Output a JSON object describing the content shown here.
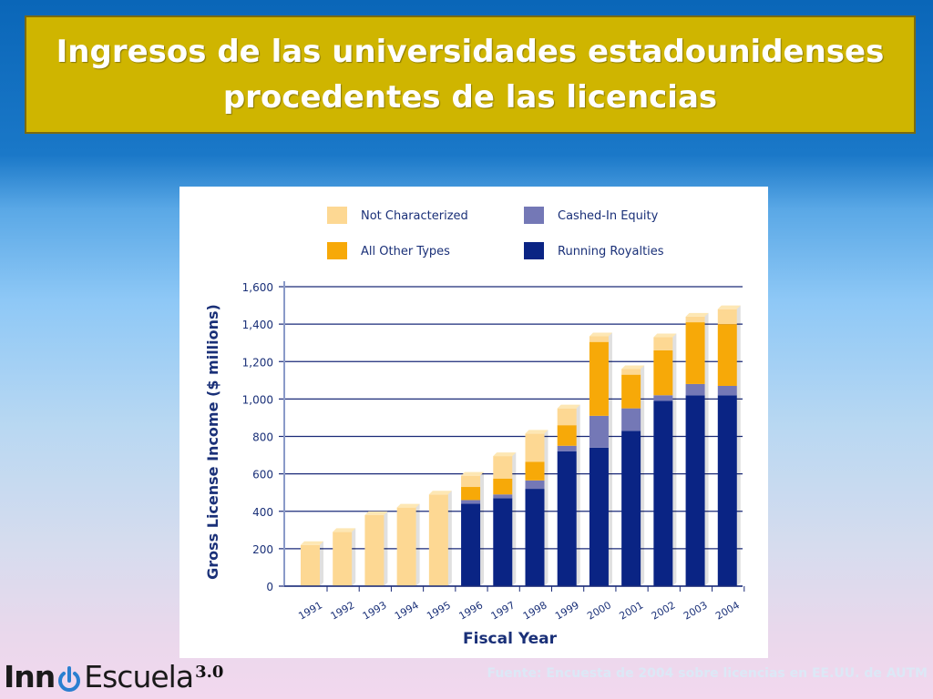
{
  "slide": {
    "title_line1": "Ingresos de las universidades estadounidenses",
    "title_line2": "procedentes de las licencias",
    "source": "Fuente: Encuesta de 2004 sobre licencias en EE.UU. de AUTM",
    "logo": {
      "inn": "Inn",
      "escuela": "Escuela",
      "version": "3.0"
    }
  },
  "colors": {
    "title_box": "#cfb500",
    "not_characterized": "#fdd893",
    "all_other_types": "#f7a908",
    "cashed_in_equity": "#7478b6",
    "running_royalties": "#0a2484",
    "axis_text": "#1a3078"
  },
  "chart_data": {
    "type": "bar",
    "stacked": true,
    "xlabel": "Fiscal Year",
    "ylabel": "Gross License Income ($ millions)",
    "ylim": [
      0,
      1600
    ],
    "yticks": [
      "0",
      "200",
      "400",
      "600",
      "800",
      "1,000",
      "1,200",
      "1,400",
      "1,600"
    ],
    "ytick_values": [
      0,
      200,
      400,
      600,
      800,
      1000,
      1200,
      1400,
      1600
    ],
    "grid": true,
    "legend_position": "top",
    "categories": [
      "1991",
      "1992",
      "1993",
      "1994",
      "1995",
      "1996",
      "1997",
      "1998",
      "1999",
      "2000",
      "2001",
      "2002",
      "2003",
      "2004"
    ],
    "series": [
      {
        "name": "Running Royalties",
        "color": "#0a2484",
        "values": [
          0,
          0,
          0,
          0,
          0,
          440,
          470,
          520,
          720,
          740,
          830,
          990,
          1020,
          1020
        ]
      },
      {
        "name": "Cashed-In Equity",
        "color": "#7478b6",
        "values": [
          0,
          0,
          0,
          0,
          0,
          20,
          20,
          45,
          30,
          170,
          120,
          30,
          60,
          50
        ]
      },
      {
        "name": "All Other Types",
        "color": "#f7a908",
        "values": [
          0,
          0,
          0,
          0,
          0,
          70,
          85,
          100,
          110,
          395,
          180,
          240,
          330,
          330
        ]
      },
      {
        "name": "Not Characterized",
        "color": "#fdd893",
        "values": [
          220,
          290,
          380,
          420,
          490,
          60,
          120,
          150,
          90,
          30,
          30,
          70,
          30,
          80
        ]
      }
    ],
    "legend": [
      {
        "name": "Not Characterized",
        "color": "#fdd893"
      },
      {
        "name": "Cashed-In Equity",
        "color": "#7478b6"
      },
      {
        "name": "All Other Types",
        "color": "#f7a908"
      },
      {
        "name": "Running Royalties",
        "color": "#0a2484"
      }
    ]
  }
}
